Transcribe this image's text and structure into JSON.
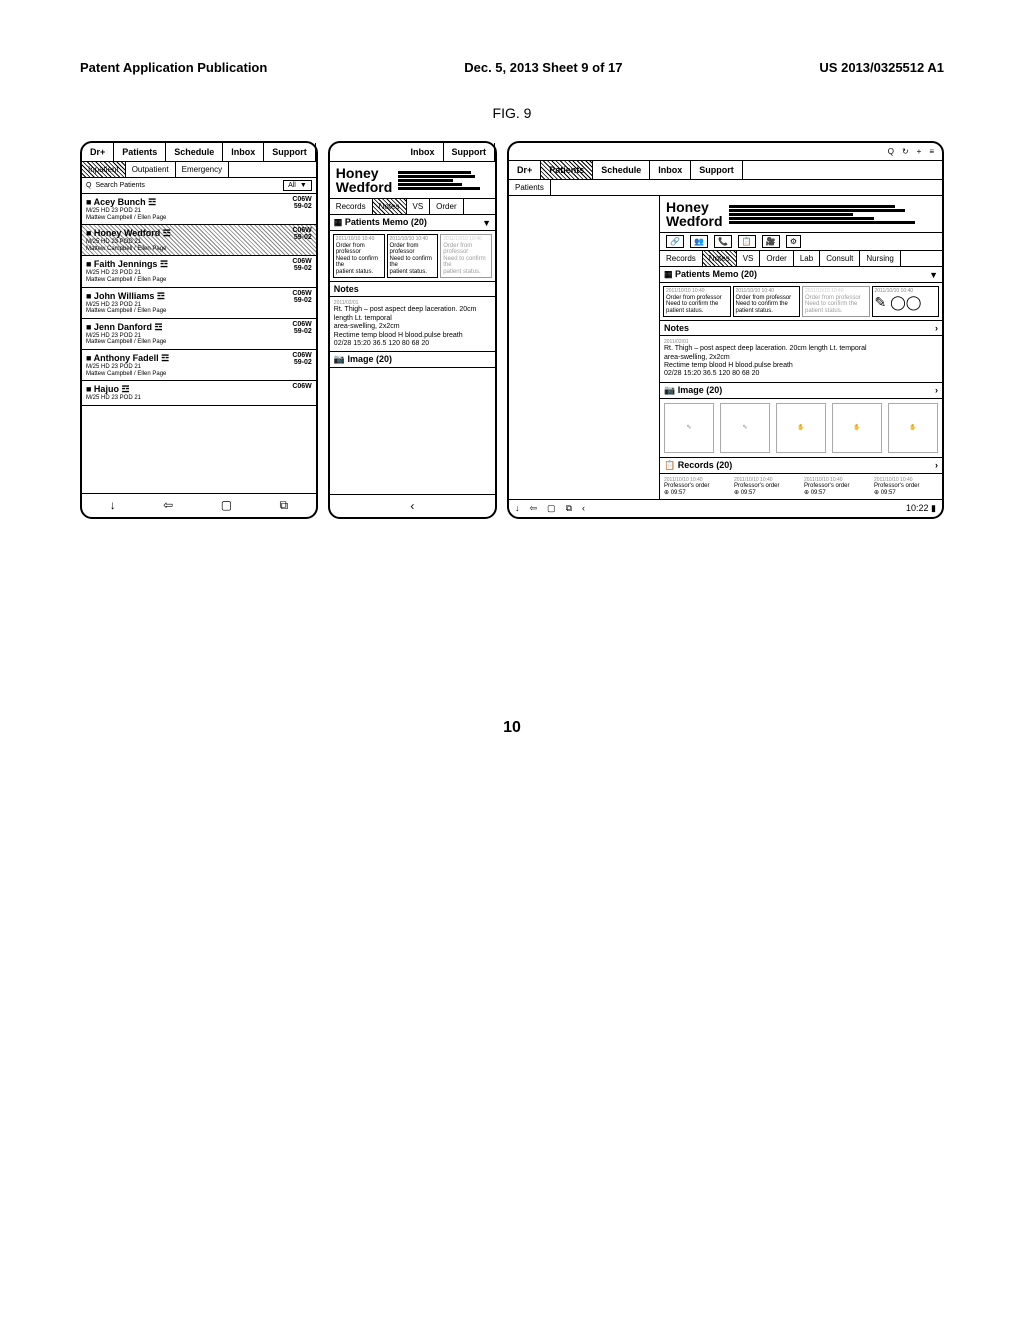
{
  "header": {
    "left": "Patent Application Publication",
    "center": "Dec. 5, 2013  Sheet 9 of 17",
    "right": "US 2013/0325512 A1"
  },
  "figure_label": "FIG. 9",
  "page_footer": "10",
  "nav": {
    "brand": "Dr+",
    "items": [
      "Patients",
      "Schedule",
      "Inbox",
      "Support"
    ]
  },
  "sub_tabs": [
    "Inpatient",
    "Outpatient",
    "Emergency"
  ],
  "search": {
    "placeholder": "Search Patients",
    "filter": "All"
  },
  "patients": [
    {
      "name": "Acey Bunch",
      "info": "M/25 HD 23 POD 21",
      "doc": "Mattew Campbell / Ellen Page",
      "room": "C06W\n59-02"
    },
    {
      "name": "Honey Wedford",
      "info": "M/25 HD 23 POD 21",
      "doc": "Mattew Campbell / Ellen Page",
      "room": "C06W\n59-02",
      "hatched": true
    },
    {
      "name": "Faith Jennings",
      "info": "M/25 HD 23 POD 21",
      "doc": "Mattew Campbell / Ellen Page",
      "room": "C06W\n59-02"
    },
    {
      "name": "John Williams",
      "info": "M/25 HD 23 POD 21",
      "doc": "Mattew Campbell / Ellen Page",
      "room": "C06W\n59-02"
    },
    {
      "name": "Jenn Danford",
      "info": "M/25 HD 23 POD 21",
      "doc": "Mattew Campbell / Ellen Page",
      "room": "C06W\n59-02"
    },
    {
      "name": "Anthony Fadell",
      "info": "M/25 HD 23 POD 21",
      "doc": "Mattew Campbell / Ellen Page",
      "room": "C06W\n59-02"
    },
    {
      "name": "Hajuo",
      "info": "M/25 HD 23 POD 21",
      "doc": "",
      "room": "C06W"
    }
  ],
  "selected_patient": {
    "first": "Honey",
    "last": "Wedford"
  },
  "record_tabs": [
    "Records",
    "Notes",
    "VS",
    "Order"
  ],
  "tablet_record_tabs": [
    "Records",
    "Notes",
    "VS",
    "Order",
    "Lab",
    "Consult",
    "Nursing"
  ],
  "tab_icons": [
    "🔗",
    "👥",
    "📞",
    "📋",
    "🎥",
    "⚙"
  ],
  "sections": {
    "memo": {
      "title": "Patients Memo (20)",
      "cards": [
        {
          "ts": "2011/10/10 10:40",
          "text": "Order from professor\nNeed to confirm the\npatient status."
        },
        {
          "ts": "2011/10/10 10:40",
          "text": "Order from professor\nNeed to confirm the\npatient status."
        },
        {
          "ts": "2011/10/10 10:40",
          "text": "Order from professor\nNeed to confirm the\npatient status.",
          "faded": true
        }
      ]
    },
    "notes": {
      "title": "Notes",
      "ts": "2011/02/01",
      "lines": [
        "Rt. Thigh – post aspect deep laceration. 20cm length Lt. temporal",
        "area-swelling, 2x2cm",
        "Rectime temp blood H blood.pulse breath",
        "02/28 15:20 36.5 120 80 68 20"
      ]
    },
    "image": {
      "title": "Image (20)"
    },
    "records": {
      "title": "Records (20)",
      "items": [
        {
          "ts": "2011/10/10 10:40",
          "text": "Professor's order",
          "time": "09:57"
        },
        {
          "ts": "2011/10/10 10:40",
          "text": "Professor's order",
          "time": "09:57"
        },
        {
          "ts": "2011/10/10 10:40",
          "text": "Professor's order",
          "time": "09:57"
        },
        {
          "ts": "2011/10/10 10:40",
          "text": "Professor's order",
          "time": "09:57"
        }
      ]
    }
  },
  "status": {
    "time": "10:22"
  },
  "nav_icons": [
    "↓",
    "⇦",
    "▢",
    "⧉"
  ],
  "tablet_nav_icons": [
    "↓",
    "⇦",
    "▢",
    "⧉",
    "‹"
  ],
  "topbar_icons": [
    "Q",
    "↻",
    "+",
    "≡"
  ]
}
